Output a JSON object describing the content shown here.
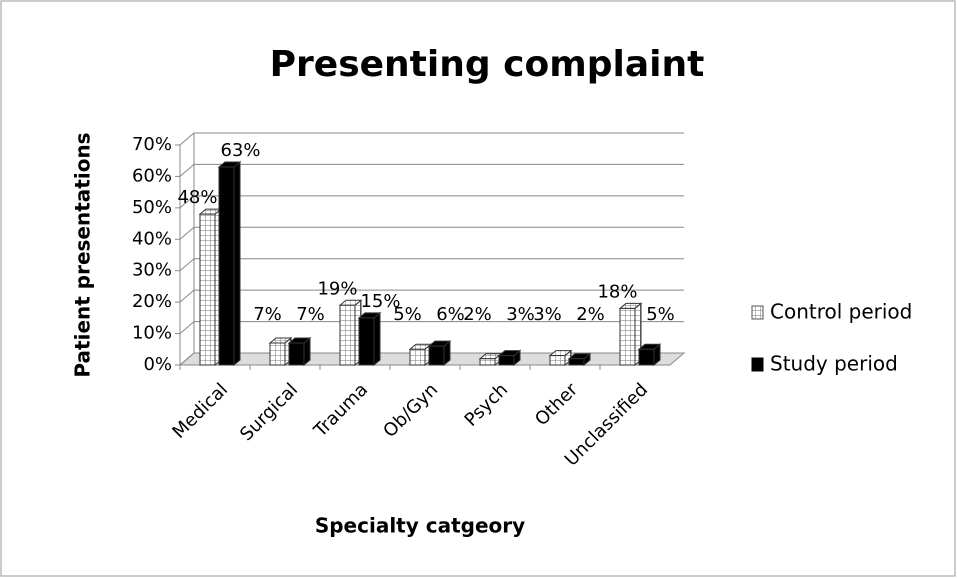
{
  "chart_data": {
    "type": "bar3d",
    "title": "Presenting complaint",
    "y_label": "Patient presentations",
    "x_label": "Specialty catgeory",
    "categories": [
      "Medical",
      "Surgical",
      "Trauma",
      "Ob/Gyn",
      "Psych",
      "Other",
      "Unclassified"
    ],
    "series": [
      {
        "name": "Control period",
        "color": "#ffffff",
        "values": [
          48,
          7,
          19,
          5,
          2,
          3,
          18
        ],
        "value_labels": [
          "48%",
          "7%",
          "19%",
          "5%",
          "2%",
          "3%",
          "18%"
        ]
      },
      {
        "name": "Study period",
        "color": "#000000",
        "values": [
          63,
          7,
          15,
          6,
          3,
          2,
          5
        ],
        "value_labels": [
          "63%",
          "7%",
          "15%",
          "6%",
          "3%",
          "2%",
          "5%"
        ]
      }
    ],
    "ylim": [
      0,
      70
    ],
    "yticks": [
      {
        "value": 0,
        "label": "0%"
      },
      {
        "value": 10,
        "label": "10%"
      },
      {
        "value": 20,
        "label": "20%"
      },
      {
        "value": 30,
        "label": "30%"
      },
      {
        "value": 40,
        "label": "40%"
      },
      {
        "value": 50,
        "label": "50%"
      },
      {
        "value": 60,
        "label": "60%"
      },
      {
        "value": 70,
        "label": "70%"
      }
    ],
    "grid": true,
    "legend": "right"
  }
}
